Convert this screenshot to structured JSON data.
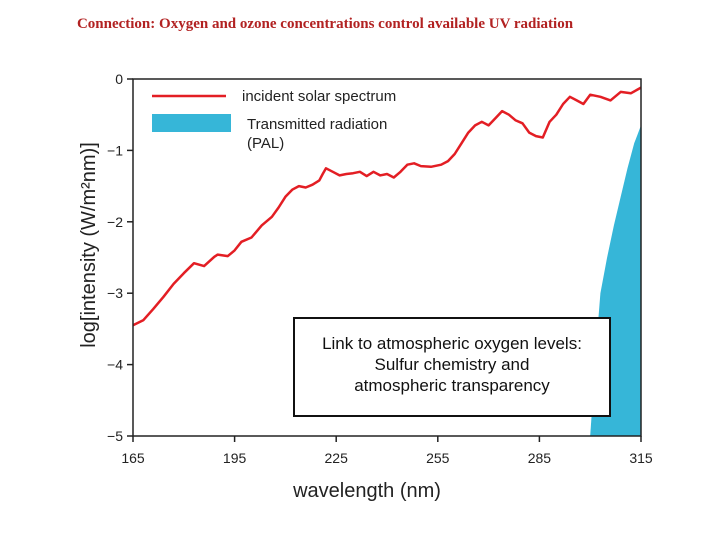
{
  "slide": {
    "title": "Connection:  Oxygen and ozone concentrations control available UV radiation"
  },
  "note": {
    "lines": [
      "Link to atmospheric oxygen levels:",
      "Sulfur chemistry and",
      "atmospheric transparency"
    ]
  },
  "chart_data": {
    "type": "line",
    "title": "",
    "xlabel": "wavelength (nm)",
    "ylabel": "log[intensity (W/m²nm)]",
    "xlim": [
      165,
      315
    ],
    "ylim": [
      -5,
      0
    ],
    "x_ticks": [
      165,
      195,
      225,
      255,
      285,
      315
    ],
    "y_ticks": [
      0,
      -1,
      -2,
      -3,
      -4,
      -5
    ],
    "grid": false,
    "legend_position": "top-left",
    "colors": {
      "solar": "#e31e24",
      "transmitted": "#36b6d8"
    },
    "series": [
      {
        "name": "incident solar spectrum",
        "kind": "line",
        "x": [
          165,
          168,
          171,
          174,
          177,
          180,
          183,
          186,
          189,
          190,
          193,
          195,
          197,
          200,
          203,
          206,
          208,
          210,
          212,
          214,
          216,
          218,
          220,
          221,
          222,
          224,
          226,
          228,
          230,
          232,
          234,
          236,
          238,
          240,
          242,
          244,
          246,
          248,
          250,
          253,
          256,
          258,
          260,
          262,
          264,
          266,
          268,
          270,
          272,
          274,
          276,
          278,
          280,
          282,
          284,
          286,
          288,
          290,
          292,
          294,
          296,
          298,
          300,
          303,
          306,
          309,
          312,
          315
        ],
        "y": [
          -3.45,
          -3.38,
          -3.22,
          -3.05,
          -2.87,
          -2.72,
          -2.58,
          -2.62,
          -2.49,
          -2.46,
          -2.48,
          -2.4,
          -2.28,
          -2.22,
          -2.05,
          -1.93,
          -1.8,
          -1.65,
          -1.55,
          -1.5,
          -1.52,
          -1.48,
          -1.42,
          -1.33,
          -1.25,
          -1.3,
          -1.35,
          -1.33,
          -1.32,
          -1.3,
          -1.36,
          -1.3,
          -1.35,
          -1.33,
          -1.38,
          -1.3,
          -1.2,
          -1.18,
          -1.22,
          -1.23,
          -1.2,
          -1.15,
          -1.05,
          -0.9,
          -0.75,
          -0.65,
          -0.6,
          -0.65,
          -0.55,
          -0.45,
          -0.5,
          -0.58,
          -0.62,
          -0.75,
          -0.8,
          -0.82,
          -0.6,
          -0.5,
          -0.35,
          -0.25,
          -0.3,
          -0.35,
          -0.22,
          -0.25,
          -0.3,
          -0.18,
          -0.2,
          -0.12
        ]
      },
      {
        "name": "Transmitted radiation\n(PAL)",
        "kind": "area",
        "x": [
          300,
          301,
          302,
          303,
          305,
          307,
          309,
          311,
          313,
          315
        ],
        "y": [
          -5.0,
          -4.3,
          -3.6,
          -3.0,
          -2.5,
          -2.05,
          -1.65,
          -1.25,
          -0.9,
          -0.65
        ]
      }
    ]
  }
}
